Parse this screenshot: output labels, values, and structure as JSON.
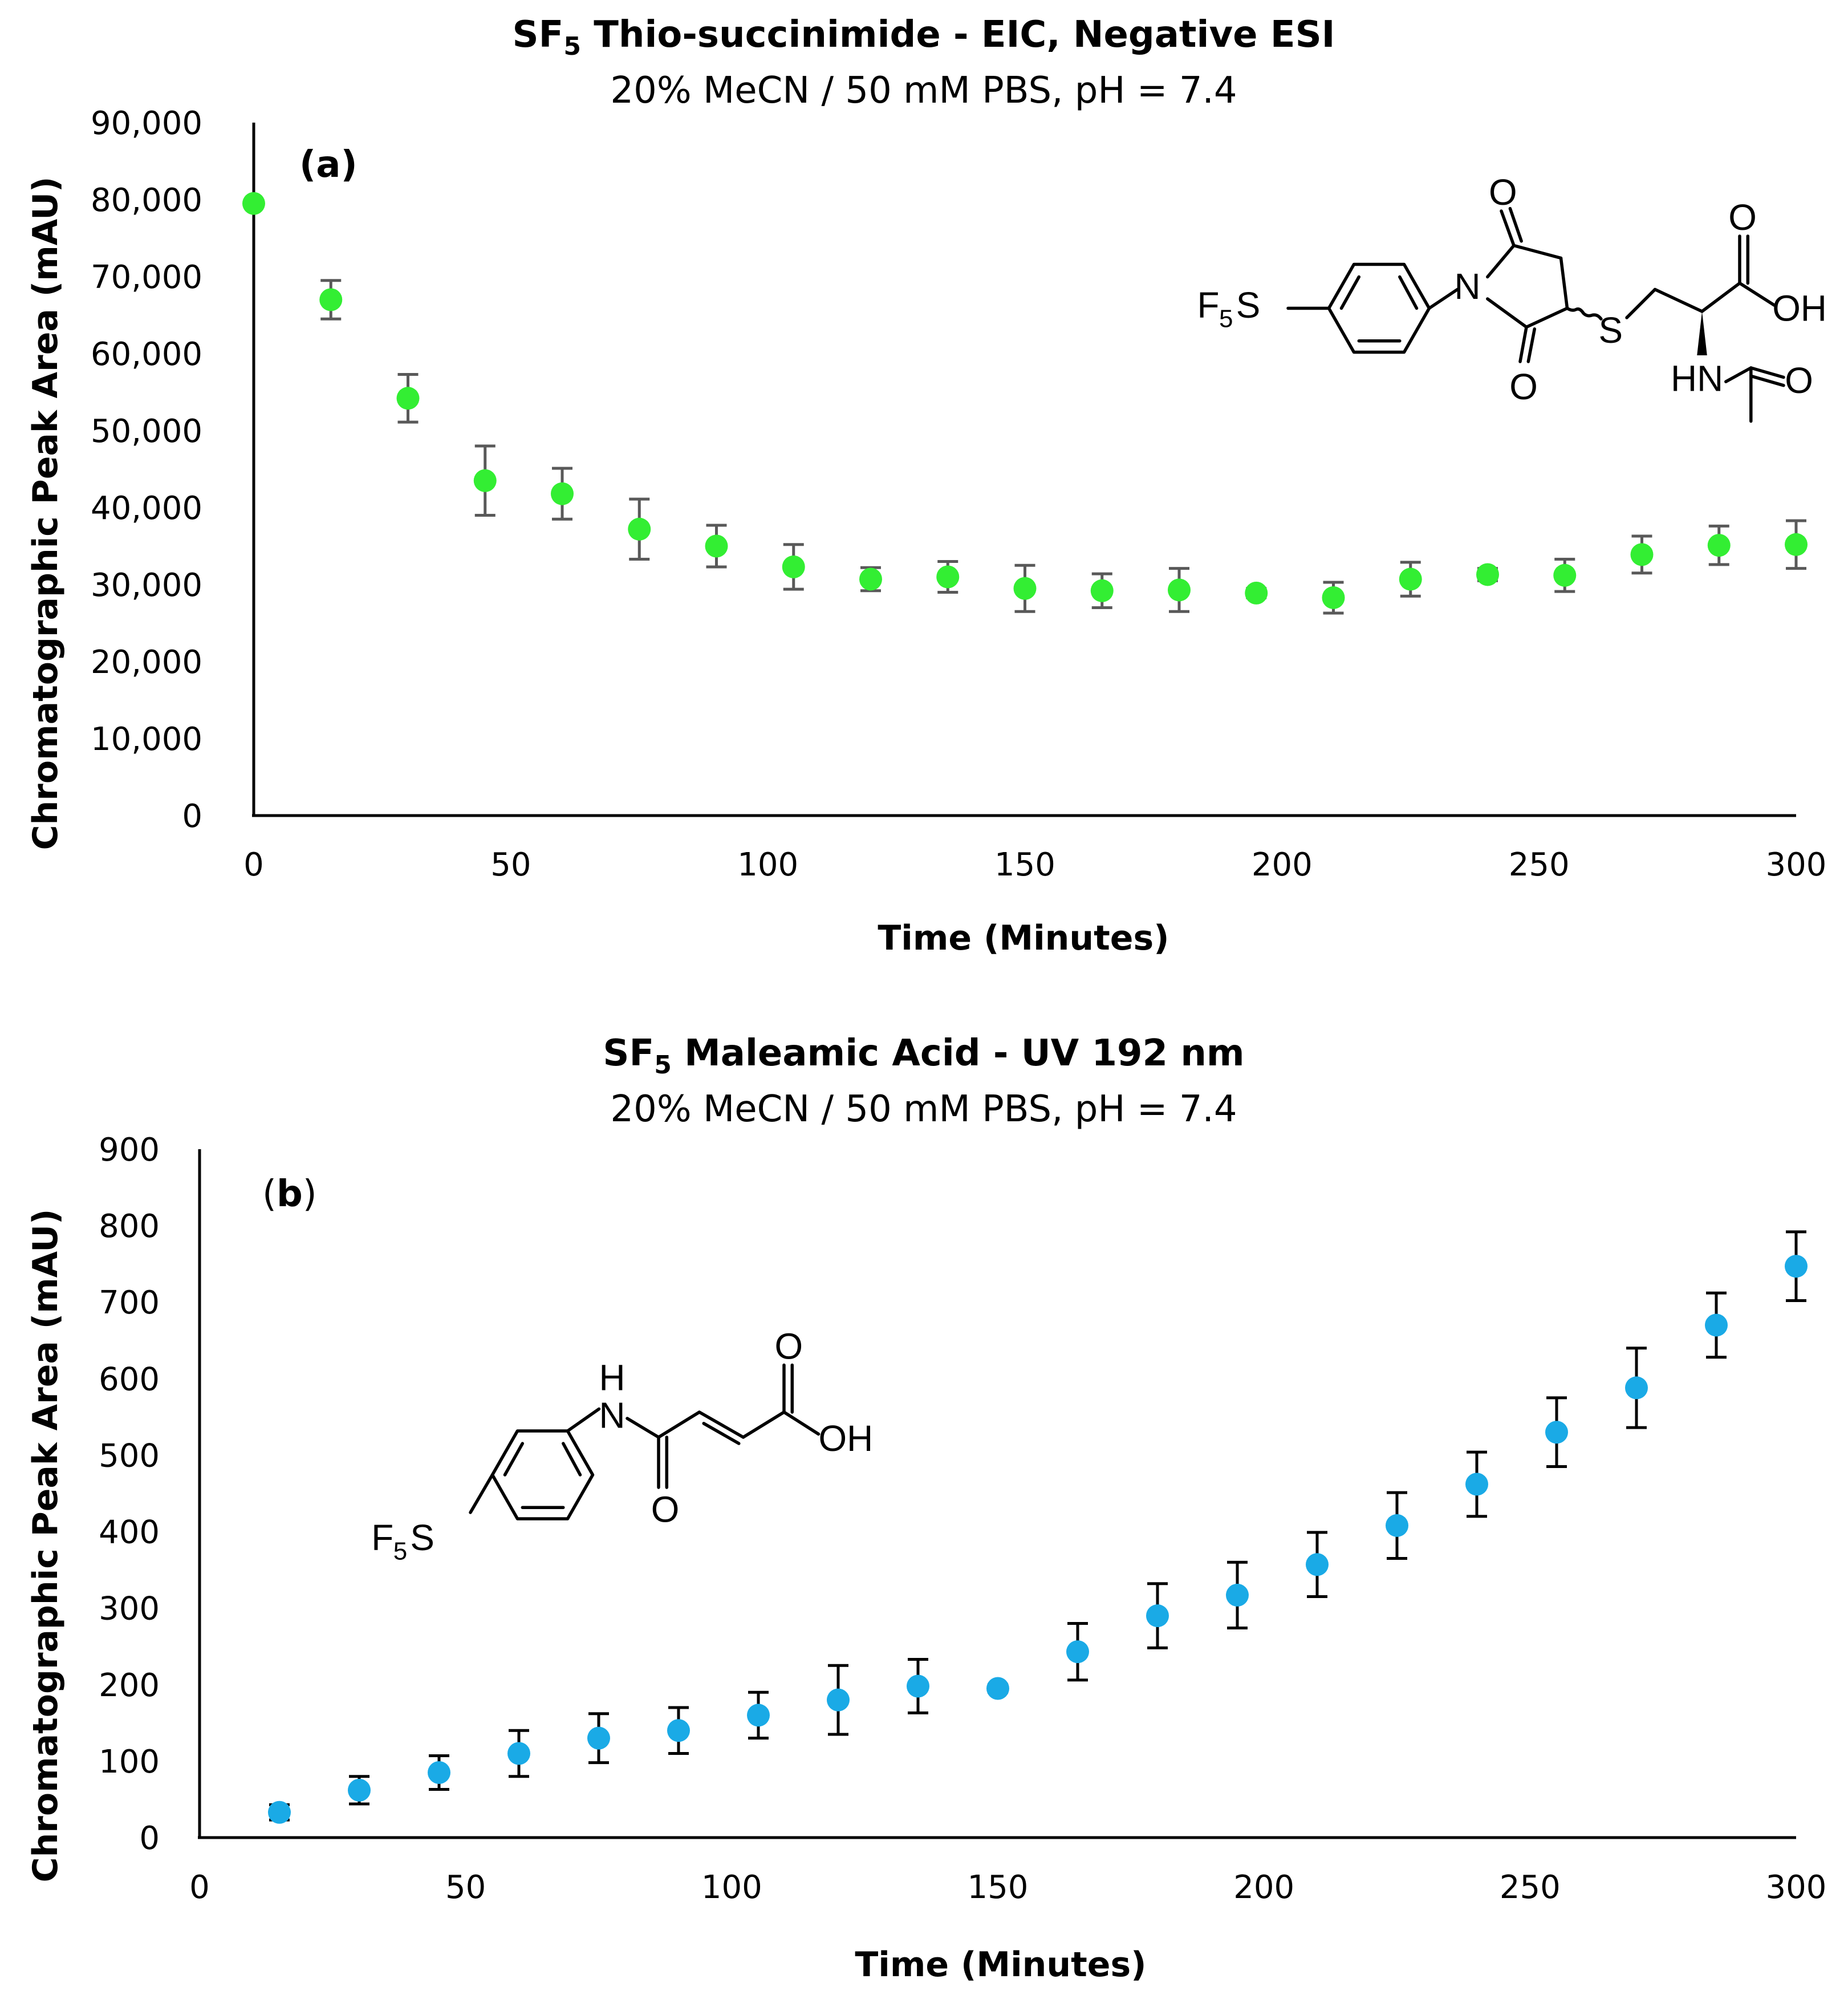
{
  "chart_data": [
    {
      "type": "scatter",
      "panel_label": "(a)",
      "title": "SF5 Thio-succinimide - EIC, Negative ESI",
      "title_parts": {
        "prefix": "SF",
        "sub": "5",
        "rest": " Thio-succinimide - EIC, Negative ESI"
      },
      "subtitle": "20% MeCN / 50 mM PBS, pH = 7.4",
      "xlabel": "Time (Minutes)",
      "ylabel": "Chromatographic Peak Area (mAU)",
      "xlim": [
        0,
        300
      ],
      "ylim": [
        0,
        90000
      ],
      "xticks": [
        0,
        50,
        100,
        150,
        200,
        250,
        300
      ],
      "yticks": [
        0,
        10000,
        20000,
        30000,
        40000,
        50000,
        60000,
        70000,
        80000,
        90000
      ],
      "ytick_labels": [
        "0",
        "10,000",
        "20,000",
        "30,000",
        "40,000",
        "50,000",
        "60,000",
        "70,000",
        "80,000",
        "90,000"
      ],
      "xtick_labels": [
        "0",
        "50",
        "100",
        "150",
        "200",
        "250",
        "300"
      ],
      "marker_color": "#33ee33",
      "errorbar_color": "#595959",
      "points": [
        {
          "x": 0,
          "y": 79500,
          "err": 0
        },
        {
          "x": 15,
          "y": 67000,
          "err": 2500
        },
        {
          "x": 30,
          "y": 54200,
          "err": 3100
        },
        {
          "x": 45,
          "y": 43500,
          "err": 4500
        },
        {
          "x": 60,
          "y": 41800,
          "err": 3300
        },
        {
          "x": 75,
          "y": 37200,
          "err": 3900
        },
        {
          "x": 90,
          "y": 35000,
          "err": 2700
        },
        {
          "x": 105,
          "y": 32300,
          "err": 2900
        },
        {
          "x": 120,
          "y": 30700,
          "err": 1500
        },
        {
          "x": 135,
          "y": 31000,
          "err": 2000
        },
        {
          "x": 150,
          "y": 29500,
          "err": 3000
        },
        {
          "x": 165,
          "y": 29200,
          "err": 2200
        },
        {
          "x": 180,
          "y": 29300,
          "err": 2800
        },
        {
          "x": 195,
          "y": 28900,
          "err": 600
        },
        {
          "x": 210,
          "y": 28300,
          "err": 2000
        },
        {
          "x": 225,
          "y": 30700,
          "err": 2200
        },
        {
          "x": 240,
          "y": 31300,
          "err": 800
        },
        {
          "x": 255,
          "y": 31200,
          "err": 2100
        },
        {
          "x": 270,
          "y": 33900,
          "err": 2400
        },
        {
          "x": 285,
          "y": 35100,
          "err": 2500
        },
        {
          "x": 300,
          "y": 35200,
          "err": 3100
        }
      ],
      "structure_labels": {
        "sf5": "F",
        "sf5_sub": "5",
        "sf5_tail": "S",
        "n": "N",
        "o1": "O",
        "o2": "O",
        "s": "S",
        "o3": "O",
        "oh": "OH",
        "hn": "HN",
        "o4": "O"
      }
    },
    {
      "type": "scatter",
      "panel_label": "(b)",
      "title": "SF5 Maleamic Acid - UV 192 nm",
      "title_parts": {
        "prefix": "SF",
        "sub": "5",
        "rest": " Maleamic Acid - UV 192 nm"
      },
      "subtitle": "20% MeCN / 50 mM PBS, pH = 7.4",
      "xlabel": "Time (Minutes)",
      "ylabel": "Chromatographic Peak Area (mAU)",
      "xlim": [
        0,
        300
      ],
      "ylim": [
        0,
        900
      ],
      "xticks": [
        0,
        50,
        100,
        150,
        200,
        250,
        300
      ],
      "yticks": [
        0,
        100,
        200,
        300,
        400,
        500,
        600,
        700,
        800,
        900
      ],
      "ytick_labels": [
        "0",
        "100",
        "200",
        "300",
        "400",
        "500",
        "600",
        "700",
        "800",
        "900"
      ],
      "xtick_labels": [
        "0",
        "50",
        "100",
        "150",
        "200",
        "250",
        "300"
      ],
      "marker_color": "#1aaae6",
      "errorbar_color": "#000000",
      "points": [
        {
          "x": 15,
          "y": 33,
          "err": 10
        },
        {
          "x": 30,
          "y": 62,
          "err": 18
        },
        {
          "x": 45,
          "y": 85,
          "err": 22
        },
        {
          "x": 60,
          "y": 110,
          "err": 30
        },
        {
          "x": 75,
          "y": 130,
          "err": 32
        },
        {
          "x": 90,
          "y": 140,
          "err": 30
        },
        {
          "x": 105,
          "y": 160,
          "err": 30
        },
        {
          "x": 120,
          "y": 180,
          "err": 45
        },
        {
          "x": 135,
          "y": 198,
          "err": 35
        },
        {
          "x": 150,
          "y": 195,
          "err": 5
        },
        {
          "x": 165,
          "y": 243,
          "err": 37
        },
        {
          "x": 180,
          "y": 290,
          "err": 42
        },
        {
          "x": 195,
          "y": 317,
          "err": 43
        },
        {
          "x": 210,
          "y": 357,
          "err": 42
        },
        {
          "x": 225,
          "y": 408,
          "err": 43
        },
        {
          "x": 240,
          "y": 462,
          "err": 42
        },
        {
          "x": 255,
          "y": 530,
          "err": 45
        },
        {
          "x": 270,
          "y": 588,
          "err": 52
        },
        {
          "x": 285,
          "y": 670,
          "err": 42
        },
        {
          "x": 300,
          "y": 747,
          "err": 45
        }
      ],
      "structure_labels": {
        "sf5": "F",
        "sf5_sub": "5",
        "sf5_tail": "S",
        "nh_h": "H",
        "nh_n": "N",
        "o1": "O",
        "o2": "O",
        "oh": "OH"
      }
    }
  ]
}
